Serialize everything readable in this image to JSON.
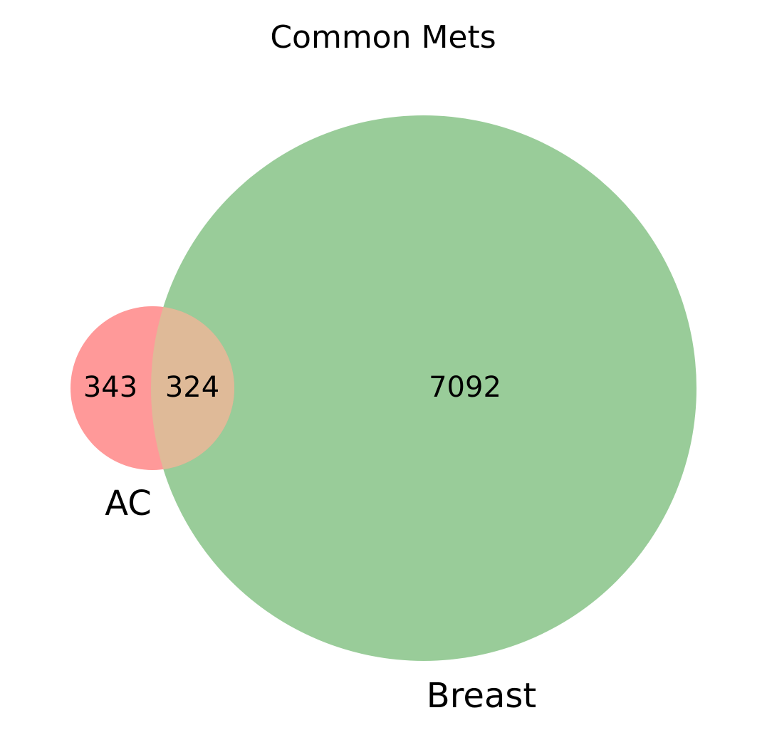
{
  "diagram": {
    "title": "Common Mets",
    "sets": [
      {
        "name": "AC",
        "color": "#ff9999"
      },
      {
        "name": "Breast",
        "color": "#99cc99"
      }
    ],
    "overlap_color": "#dfba98"
  },
  "regions": {
    "ac_only": "343",
    "overlap": "324",
    "breast_only": "7092"
  }
}
